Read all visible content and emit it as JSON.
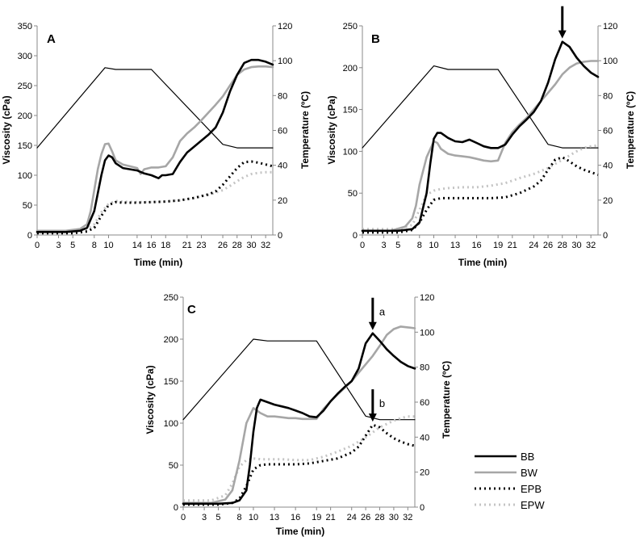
{
  "styles": {
    "BB": {
      "color": "#000000",
      "dash": "",
      "kind": "solid-thick"
    },
    "BW": {
      "color": "#a6a6a6",
      "dash": "",
      "kind": "solid-thick"
    },
    "EPB": {
      "color": "#000000",
      "dash": "2 4",
      "kind": "dotted"
    },
    "EPW": {
      "color": "#c4c4c4",
      "dash": "2 4",
      "kind": "dotted"
    },
    "Temperature": {
      "color": "#000000",
      "kind": "thin"
    }
  },
  "legend": {
    "entries": [
      "BB",
      "BW",
      "EPB",
      "EPW"
    ]
  },
  "chart_data": [
    {
      "type": "line",
      "panel": "A",
      "xlabel": "Time (min)",
      "ylabel": "Viscosity (cPa)",
      "y2label": "Temperature (ºC)",
      "xlim": [
        0,
        33
      ],
      "ylim": [
        0,
        350
      ],
      "y2lim": [
        0,
        120
      ],
      "xticks": [
        0,
        3,
        5,
        8,
        10,
        14,
        16,
        18,
        21,
        23,
        26,
        28,
        30,
        32
      ],
      "xtick_labels": [
        "0",
        "3",
        "5",
        "8",
        "10",
        "14",
        "16",
        "18",
        "21",
        "23",
        "26",
        "28",
        "30",
        "32"
      ],
      "yticks": [
        0,
        50,
        100,
        150,
        200,
        250,
        300,
        350
      ],
      "y2ticks": [
        0,
        20,
        40,
        60,
        80,
        100,
        120
      ],
      "series": [
        {
          "name": "BB",
          "x": [
            0,
            4,
            6,
            7,
            8,
            8.5,
            9,
            9.5,
            10,
            10.5,
            11,
            12,
            13,
            14,
            15,
            16,
            17,
            17.5,
            18,
            19,
            20,
            21,
            22,
            23,
            24,
            25,
            26,
            27,
            28,
            29,
            30,
            31,
            32,
            33
          ],
          "values": [
            5,
            5,
            7,
            12,
            40,
            70,
            100,
            125,
            133,
            130,
            120,
            112,
            110,
            108,
            103,
            100,
            95,
            100,
            100,
            102,
            122,
            138,
            148,
            158,
            168,
            180,
            205,
            240,
            268,
            288,
            293,
            293,
            290,
            285
          ]
        },
        {
          "name": "BW",
          "x": [
            0,
            4,
            6,
            7,
            7.5,
            8,
            8.5,
            9,
            9.5,
            10,
            10.5,
            11,
            12,
            13,
            14,
            14.5,
            15,
            16,
            17,
            18,
            19,
            20,
            21,
            22,
            23,
            24,
            25,
            26,
            27,
            28,
            29,
            30,
            31,
            32,
            33
          ],
          "values": [
            7,
            7,
            10,
            18,
            40,
            75,
            110,
            135,
            152,
            153,
            140,
            125,
            118,
            115,
            112,
            102,
            110,
            113,
            113,
            115,
            130,
            157,
            170,
            180,
            192,
            205,
            218,
            232,
            250,
            268,
            277,
            281,
            282,
            282,
            281
          ]
        },
        {
          "name": "EPB",
          "x": [
            0,
            5,
            7,
            8,
            9,
            10,
            11,
            12,
            14,
            16,
            18,
            20,
            22,
            24,
            25,
            26,
            27,
            28,
            29,
            30,
            31,
            32,
            33
          ],
          "values": [
            3,
            3,
            6,
            12,
            32,
            50,
            55,
            54,
            54,
            55,
            56,
            58,
            62,
            68,
            73,
            84,
            98,
            112,
            122,
            123,
            121,
            118,
            115
          ]
        },
        {
          "name": "EPW",
          "x": [
            0,
            5,
            7,
            8,
            9,
            10,
            11,
            12,
            14,
            16,
            18,
            20,
            22,
            24,
            26,
            27,
            28,
            29,
            30,
            31,
            32,
            33
          ],
          "values": [
            6,
            6,
            9,
            18,
            38,
            52,
            57,
            56,
            55,
            55,
            56,
            58,
            62,
            67,
            75,
            82,
            90,
            97,
            102,
            104,
            105,
            105
          ]
        },
        {
          "name": "Temperature",
          "axis": "y2",
          "x": [
            0,
            9.5,
            11,
            16,
            26,
            28,
            33
          ],
          "values": [
            50,
            96,
            95,
            95,
            52,
            50,
            50
          ]
        }
      ]
    },
    {
      "type": "line",
      "panel": "B",
      "xlabel": "Time (min)",
      "ylabel": "Viscosity (cPa)",
      "y2label": "Temperature (ºC)",
      "xlim": [
        0,
        33
      ],
      "ylim": [
        0,
        250
      ],
      "y2lim": [
        0,
        120
      ],
      "xticks": [
        0,
        3,
        5,
        8,
        10,
        13,
        16,
        19,
        21,
        24,
        26,
        28,
        30,
        32
      ],
      "xtick_labels": [
        "0",
        "3",
        "5",
        "8",
        "10",
        "13",
        "16",
        "19",
        "21",
        "24",
        "26",
        "28",
        "30",
        "32"
      ],
      "yticks": [
        0,
        50,
        100,
        150,
        200,
        250
      ],
      "y2ticks": [
        0,
        20,
        40,
        60,
        80,
        100,
        120
      ],
      "annotations": [
        {
          "label": "",
          "x": 28,
          "y": 231
        }
      ],
      "series": [
        {
          "name": "BB",
          "x": [
            0,
            5,
            7,
            8,
            9,
            9.5,
            10,
            10.5,
            11,
            12,
            13,
            14,
            15,
            16,
            17,
            18,
            19,
            20,
            21,
            22,
            23,
            24,
            25,
            26,
            27,
            28,
            29,
            30,
            31,
            32,
            33
          ],
          "values": [
            5,
            5,
            7,
            15,
            50,
            85,
            115,
            122,
            122,
            116,
            112,
            111,
            114,
            110,
            106,
            104,
            104,
            108,
            120,
            130,
            138,
            147,
            160,
            182,
            210,
            231,
            225,
            212,
            202,
            194,
            189
          ]
        },
        {
          "name": "BW",
          "x": [
            0,
            4,
            6,
            7,
            7.5,
            8,
            9,
            10,
            10.5,
            11,
            12,
            13,
            14,
            15,
            16,
            17,
            18,
            19,
            20,
            21,
            22,
            23,
            24,
            25,
            26,
            27,
            28,
            29,
            30,
            31,
            32,
            33
          ],
          "values": [
            5,
            5,
            10,
            20,
            35,
            60,
            93,
            112,
            110,
            103,
            97,
            95,
            94,
            93,
            91,
            89,
            88,
            89,
            110,
            123,
            132,
            140,
            150,
            160,
            170,
            180,
            192,
            200,
            205,
            207,
            208,
            208
          ]
        },
        {
          "name": "EPB",
          "x": [
            0,
            5,
            7,
            8,
            9,
            10,
            11,
            12,
            14,
            16,
            18,
            20,
            22,
            24,
            25,
            26,
            27,
            28,
            29,
            30,
            31,
            32,
            33
          ],
          "values": [
            3,
            3,
            6,
            15,
            30,
            42,
            44,
            44,
            44,
            44,
            44,
            45,
            50,
            58,
            65,
            78,
            90,
            93,
            88,
            82,
            78,
            75,
            72
          ]
        },
        {
          "name": "EPW",
          "x": [
            0,
            5,
            7,
            8,
            9,
            10,
            11,
            12,
            14,
            16,
            18,
            20,
            22,
            24,
            26,
            28,
            30,
            31,
            32,
            33
          ],
          "values": [
            7,
            7,
            12,
            30,
            48,
            53,
            55,
            56,
            57,
            57,
            59,
            62,
            68,
            73,
            80,
            90,
            100,
            104,
            106,
            107
          ]
        },
        {
          "name": "Temperature",
          "axis": "y2",
          "x": [
            0,
            10,
            12,
            18,
            19,
            26,
            28,
            33
          ],
          "values": [
            50,
            97,
            95,
            95,
            95,
            52,
            50,
            50
          ]
        }
      ]
    },
    {
      "type": "line",
      "panel": "C",
      "xlabel": "Time (min)",
      "ylabel": "Viscosity (cPa)",
      "y2label": "Temperature (ºC)",
      "xlim": [
        0,
        33
      ],
      "ylim": [
        0,
        250
      ],
      "y2lim": [
        0,
        120
      ],
      "xticks": [
        0,
        3,
        5,
        8,
        10,
        13,
        16,
        19,
        21,
        24,
        26,
        28,
        30,
        32
      ],
      "xtick_labels": [
        "0",
        "3",
        "5",
        "8",
        "10",
        "13",
        "16",
        "19",
        "21",
        "24",
        "26",
        "28",
        "30",
        "32"
      ],
      "yticks": [
        0,
        50,
        100,
        150,
        200,
        250
      ],
      "y2ticks": [
        0,
        20,
        40,
        60,
        80,
        100,
        120
      ],
      "annotations": [
        {
          "label": "a",
          "x": 27,
          "y": 207
        },
        {
          "label": "b",
          "x": 27,
          "y": 98
        }
      ],
      "series": [
        {
          "name": "BB",
          "x": [
            0,
            5,
            7,
            8,
            9,
            9.5,
            10,
            10.5,
            11,
            12,
            13,
            14,
            15,
            16,
            17,
            18,
            19,
            20,
            21,
            22,
            23,
            24,
            25,
            26,
            27,
            28,
            29,
            30,
            31,
            32,
            33
          ],
          "values": [
            4,
            4,
            5,
            8,
            20,
            50,
            90,
            118,
            128,
            125,
            122,
            120,
            118,
            115,
            112,
            108,
            107,
            115,
            126,
            135,
            143,
            150,
            165,
            195,
            207,
            198,
            188,
            180,
            173,
            168,
            165
          ]
        },
        {
          "name": "BW",
          "x": [
            0,
            4,
            6,
            7,
            8,
            9,
            10,
            11,
            12,
            13,
            14,
            15,
            16,
            17,
            18,
            19,
            20,
            21,
            22,
            23,
            24,
            25,
            26,
            27,
            28,
            29,
            30,
            31,
            32,
            33
          ],
          "values": [
            5,
            5,
            9,
            20,
            55,
            100,
            118,
            112,
            108,
            108,
            107,
            106,
            106,
            105,
            105,
            105,
            117,
            126,
            134,
            142,
            150,
            160,
            170,
            180,
            192,
            205,
            212,
            215,
            214,
            213
          ]
        },
        {
          "name": "EPB",
          "x": [
            0,
            5,
            7,
            8,
            9,
            10,
            11,
            12,
            14,
            16,
            18,
            20,
            22,
            24,
            25,
            26,
            27,
            28,
            29,
            30,
            31,
            32,
            33
          ],
          "values": [
            3,
            3,
            5,
            10,
            25,
            45,
            50,
            51,
            51,
            51,
            52,
            55,
            58,
            65,
            72,
            85,
            98,
            95,
            88,
            82,
            78,
            75,
            73
          ]
        },
        {
          "name": "EPW",
          "x": [
            0,
            4,
            6,
            7,
            8,
            9,
            10,
            11,
            12,
            14,
            16,
            18,
            20,
            22,
            24,
            26,
            28,
            30,
            31,
            32,
            33
          ],
          "values": [
            8,
            8,
            14,
            28,
            48,
            56,
            58,
            57,
            57,
            57,
            56,
            56,
            60,
            66,
            73,
            83,
            95,
            103,
            106,
            108,
            108
          ]
        },
        {
          "name": "Temperature",
          "axis": "y2",
          "x": [
            0,
            10,
            12,
            18,
            19,
            26,
            28,
            33
          ],
          "values": [
            50,
            96,
            95,
            95,
            95,
            52,
            50,
            50
          ]
        }
      ]
    }
  ]
}
